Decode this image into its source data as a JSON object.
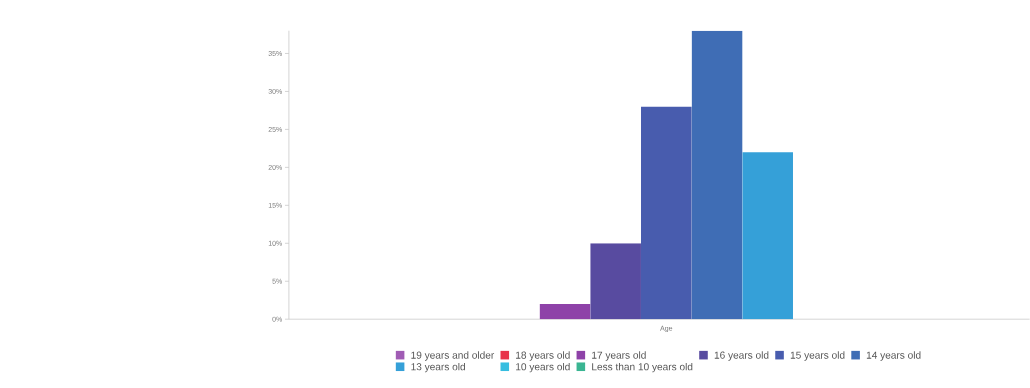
{
  "chart_data": {
    "type": "bar",
    "categories": [
      "Age"
    ],
    "series": [
      {
        "name": "19 years and older",
        "color": "#a05cb4",
        "values": [
          0
        ]
      },
      {
        "name": "18 years old",
        "color": "#e8334a",
        "values": [
          0
        ]
      },
      {
        "name": "17 years old",
        "color": "#8e42a8",
        "values": [
          2
        ]
      },
      {
        "name": "16 years old",
        "color": "#584ba0",
        "values": [
          10
        ]
      },
      {
        "name": "15 years old",
        "color": "#485cae",
        "values": [
          28
        ]
      },
      {
        "name": "14 years old",
        "color": "#3f6db5",
        "values": [
          38
        ]
      },
      {
        "name": "13 years old",
        "color": "#35a0d8",
        "values": [
          22
        ]
      },
      {
        "name": "10 years old",
        "color": "#36bde0",
        "values": [
          0
        ]
      },
      {
        "name": "Less than 10 years old",
        "color": "#3ab592",
        "values": [
          0
        ]
      }
    ],
    "ylim": [
      0,
      38
    ],
    "yticks": [
      {
        "value": 0,
        "label": "0%"
      },
      {
        "value": 5,
        "label": "5%"
      },
      {
        "value": 10,
        "label": "10%"
      },
      {
        "value": 15,
        "label": "15%"
      },
      {
        "value": 20,
        "label": "20%"
      },
      {
        "value": 25,
        "label": "25%"
      },
      {
        "value": 30,
        "label": "30%"
      },
      {
        "value": 35,
        "label": "35%"
      }
    ],
    "grid": false,
    "legend": "bottom"
  }
}
